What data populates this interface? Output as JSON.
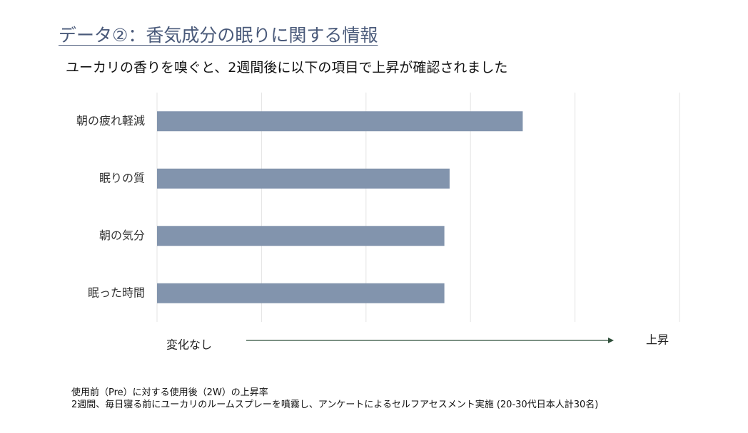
{
  "slide": {
    "title": "データ②：香気成分の眠りに関する情報",
    "subtitle": "ユーカリの香りを嗅ぐと、2週間後に以下の項目で上昇が確認されました",
    "footnote_line1": "使用前（Pre）に対する使用後（2W）の上昇率",
    "footnote_line2": "2週間、毎日寝る前にユーカリのルームスプレーを噴霧し、アンケートによるセルフアセスメント実施 (20-30代日本人計30名)"
  },
  "chart_data": {
    "type": "bar",
    "orientation": "horizontal",
    "categories": [
      "朝の疲れ軽減",
      "眠りの質",
      "朝の気分",
      "眠った時間"
    ],
    "values": [
      70,
      56,
      55,
      55
    ],
    "xlim": [
      0,
      100
    ],
    "grid": true,
    "gridlines": 6,
    "x_axis_left_label": "変化なし",
    "x_axis_right_label": "上昇",
    "bar_color": "#8294ad",
    "grid_color": "#e3e3e3",
    "arrow_color": "#2f4f3a"
  }
}
